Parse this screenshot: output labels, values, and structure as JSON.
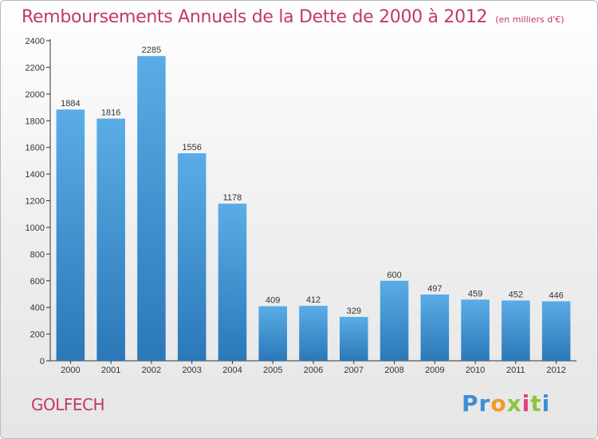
{
  "header": {
    "title": "Remboursements Annuels de la Dette de 2000 à 2012",
    "unit": "(en milliers d'€)"
  },
  "footer": {
    "commune": "GOLFECH",
    "logo_letters": [
      {
        "char": "P",
        "color": "#3b8fd6"
      },
      {
        "char": "r",
        "color": "#3b8fd6"
      },
      {
        "char": "o",
        "color": "#f29a1f"
      },
      {
        "char": "x",
        "color": "#8cc63e"
      },
      {
        "char": "i",
        "color": "#e5407a"
      },
      {
        "char": "t",
        "color": "#8cc63e"
      },
      {
        "char": "i",
        "color": "#3b8fd6"
      }
    ]
  },
  "colors": {
    "bar_light": "#5aace6",
    "bar_dark": "#2b78b8",
    "axis": "#333333",
    "title": "#c0396b"
  },
  "chart_data": {
    "type": "bar",
    "categories": [
      "2000",
      "2001",
      "2002",
      "2003",
      "2004",
      "2005",
      "2006",
      "2007",
      "2008",
      "2009",
      "2010",
      "2011",
      "2012"
    ],
    "values": [
      1884,
      1816,
      2285,
      1556,
      1178,
      409,
      412,
      329,
      600,
      497,
      459,
      452,
      446
    ],
    "data_labels": [
      "1884",
      "1816",
      "2285",
      "1556",
      "1178",
      "409",
      "412",
      "329",
      "600",
      "497",
      "459",
      "452",
      "446"
    ],
    "yticks": [
      0,
      200,
      400,
      600,
      800,
      1000,
      1200,
      1400,
      1600,
      1800,
      2000,
      2200,
      2400
    ],
    "ylim": [
      0,
      2400
    ],
    "title": "Remboursements Annuels de la Dette de 2000 à 2012",
    "xlabel": "",
    "ylabel": "",
    "grid": false,
    "legend": "none"
  }
}
